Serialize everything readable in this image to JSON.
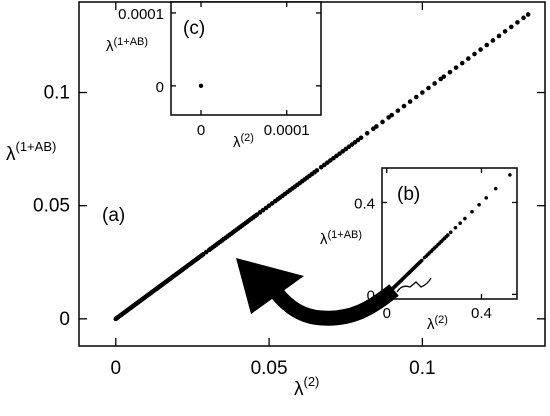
{
  "chart_data": [
    {
      "type": "scatter",
      "panel": "(a)",
      "xlabel": {
        "symbol": "λ",
        "sup": "(2)"
      },
      "ylabel": {
        "symbol": "λ",
        "sup": "(1+AB)"
      },
      "xlim": [
        -0.012,
        0.14
      ],
      "ylim": [
        -0.012,
        0.14
      ],
      "xticks": [
        {
          "value": 0,
          "label": "0"
        },
        {
          "value": 0.05,
          "label": "0.05"
        },
        {
          "value": 0.1,
          "label": "0.1"
        }
      ],
      "yticks": [
        {
          "value": 0,
          "label": "0"
        },
        {
          "value": 0.05,
          "label": "0.05"
        },
        {
          "value": 0.1,
          "label": "0.1"
        }
      ],
      "series": [
        {
          "dense_segments": [
            {
              "from": 0,
              "to": 0.028,
              "step": 0.0004
            },
            {
              "from": 0.031,
              "to": 0.046,
              "step": 0.0006
            },
            {
              "from": 0.052,
              "to": 0.066,
              "step": 0.0008
            },
            {
              "from": 0.071,
              "to": 0.078,
              "step": 0.001
            }
          ],
          "x": [
            0.0285,
            0.0295,
            0.0305,
            0.047,
            0.048,
            0.049,
            0.05,
            0.051,
            0.067,
            0.068,
            0.069,
            0.07,
            0.079,
            0.08,
            0.082,
            0.084,
            0.085,
            0.087,
            0.089,
            0.09,
            0.092,
            0.094,
            0.096,
            0.098,
            0.1,
            0.102,
            0.104,
            0.106,
            0.107,
            0.109,
            0.111,
            0.113,
            0.115,
            0.117,
            0.119,
            0.121,
            0.123,
            0.125,
            0.127,
            0.129,
            0.131,
            0.133,
            0.1345
          ],
          "slope": 1.0
        }
      ],
      "grid": false
    },
    {
      "type": "scatter",
      "panel": "(b)",
      "xlabel": {
        "symbol": "λ",
        "sup": "(2)"
      },
      "ylabel": {
        "symbol": "λ",
        "sup": "(1+AB)"
      },
      "xlim": [
        -0.02,
        0.55
      ],
      "ylim": [
        -0.02,
        0.55
      ],
      "xticks": [
        {
          "value": 0,
          "label": "0"
        },
        {
          "value": 0.4,
          "label": "0.4"
        }
      ],
      "yticks": [
        {
          "value": 0,
          "label": "0"
        },
        {
          "value": 0.4,
          "label": "0.4"
        }
      ],
      "series": [
        {
          "dense_segments": [
            {
              "from": 0,
              "to": 0.15,
              "step": 0.004
            },
            {
              "from": 0.16,
              "to": 0.26,
              "step": 0.007
            }
          ],
          "x": [
            0.27,
            0.29,
            0.31,
            0.33,
            0.36,
            0.39,
            0.42,
            0.46,
            0.52
          ],
          "slope": 1.0
        }
      ],
      "grid": false
    },
    {
      "type": "scatter",
      "panel": "(c)",
      "xlabel": {
        "symbol": "λ",
        "sup": "(2)"
      },
      "ylabel": {
        "symbol": "λ",
        "sup": "(1+AB)"
      },
      "xlim": [
        -3.5e-05,
        0.00014
      ],
      "ylim": [
        -4e-05,
        0.000115
      ],
      "xticks": [
        {
          "value": 0,
          "label": "0"
        },
        {
          "value": 0.0001,
          "label": "0.0001"
        }
      ],
      "yticks": [
        {
          "value": 0,
          "label": "0"
        },
        {
          "value": 0.0001,
          "label": "0.0001"
        }
      ],
      "series": [
        {
          "x": [
            0
          ],
          "y": [
            0
          ]
        }
      ],
      "grid": false
    }
  ],
  "annotations": {
    "arrow": {
      "from": "(b)",
      "to": "(a)",
      "color": "#000000"
    }
  },
  "colors": {
    "marker": "#000000",
    "axes": "#000000",
    "background": "#ffffff"
  }
}
